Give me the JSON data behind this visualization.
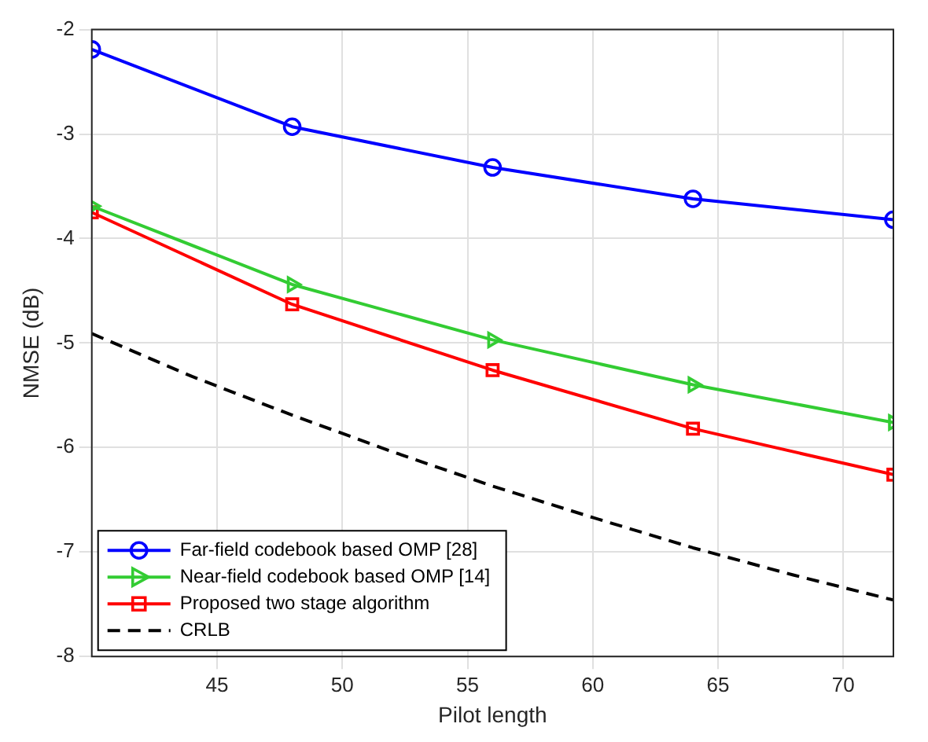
{
  "chart_data": {
    "type": "line",
    "xlabel": "Pilot length",
    "ylabel": "NMSE (dB)",
    "xlim": [
      40,
      72
    ],
    "xticks": [
      45,
      50,
      55,
      60,
      65,
      70
    ],
    "ylim": [
      -8,
      -2
    ],
    "yticks": [
      -8,
      -7,
      -6,
      -5,
      -4,
      -3,
      -2
    ],
    "grid": true,
    "legend": "bottom left",
    "series": [
      {
        "name": "Far-field codebook based OMP [28]",
        "color": "#0000ff",
        "marker": "circle",
        "line_style": "solid",
        "x": [
          40,
          48,
          56,
          64,
          72
        ],
        "values": [
          -2.19,
          -2.93,
          -3.32,
          -3.62,
          -3.82
        ]
      },
      {
        "name": "Near-field codebook based OMP [14]",
        "color": "#33cc33",
        "marker": "triangle",
        "line_style": "solid",
        "x": [
          40,
          48,
          56,
          64,
          72
        ],
        "values": [
          -3.69,
          -4.44,
          -4.97,
          -5.4,
          -5.76
        ]
      },
      {
        "name": "Proposed two stage algorithm",
        "color": "#ff0000",
        "marker": "square",
        "line_style": "solid",
        "x": [
          40,
          48,
          56,
          64,
          72
        ],
        "values": [
          -3.75,
          -4.63,
          -5.26,
          -5.82,
          -6.26
        ]
      },
      {
        "name": "CRLB",
        "color": "#000000",
        "marker": "none",
        "line_style": "dashed",
        "x": [
          40,
          44,
          48,
          52,
          56,
          60,
          64,
          68,
          72
        ],
        "values": [
          -4.91,
          -5.32,
          -5.69,
          -6.04,
          -6.37,
          -6.67,
          -6.96,
          -7.22,
          -7.46
        ]
      }
    ]
  }
}
